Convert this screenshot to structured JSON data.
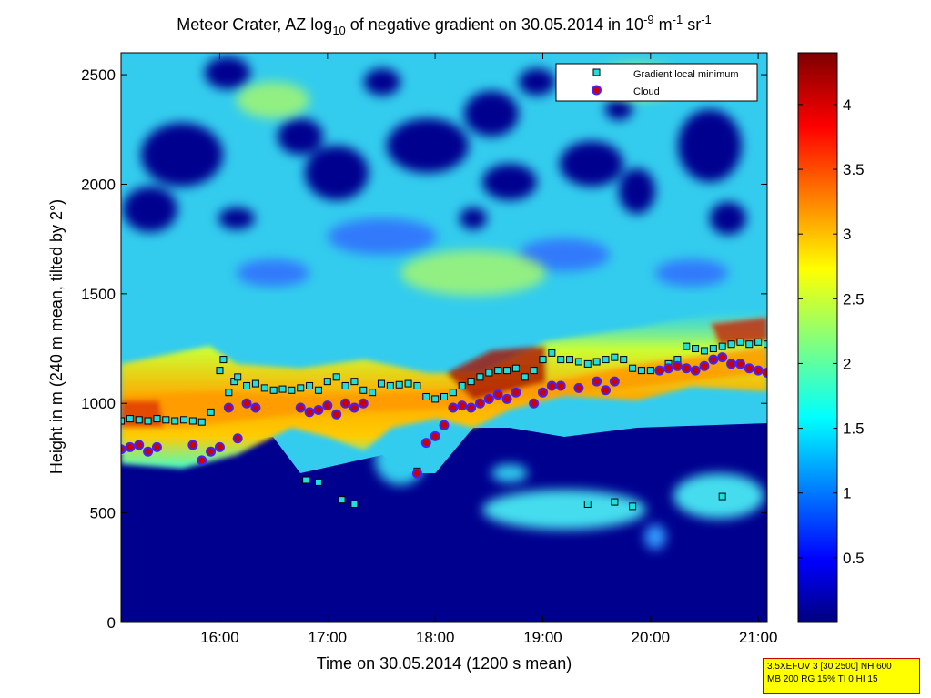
{
  "chart_data": {
    "type": "heatmap",
    "title_parts": [
      "Meteor Crater, AZ log",
      "10",
      " of negative gradient on 30.05.2014 in 10",
      "-9",
      " m",
      "-1",
      " sr",
      "-1"
    ],
    "xlabel": "Time on 30.05.2014 (1200 s mean)",
    "ylabel": "Height in m (240 m mean, tilted by 2°)",
    "xlim": [
      "15:05",
      "21:05"
    ],
    "ylim": [
      0,
      2600
    ],
    "x_ticks": [
      "16:00",
      "17:00",
      "18:00",
      "19:00",
      "20:00",
      "21:00"
    ],
    "y_ticks": [
      0,
      500,
      1000,
      1500,
      2000,
      2500
    ],
    "colorbar": {
      "colormap": "jet",
      "range": [
        0,
        4.4
      ],
      "ticks": [
        0.5,
        1,
        1.5,
        2,
        2.5,
        3,
        3.5,
        4
      ]
    },
    "legend": {
      "position": "top-right",
      "entries": [
        "Gradient local minimum",
        "Cloud"
      ]
    },
    "series": [
      {
        "name": "Gradient local minimum",
        "marker": "square",
        "color": "#22dddd",
        "points": [
          [
            "15:05",
            920
          ],
          [
            "15:10",
            930
          ],
          [
            "15:15",
            925
          ],
          [
            "15:20",
            920
          ],
          [
            "15:25",
            930
          ],
          [
            "15:30",
            925
          ],
          [
            "15:35",
            920
          ],
          [
            "15:40",
            925
          ],
          [
            "15:45",
            920
          ],
          [
            "15:50",
            915
          ],
          [
            "15:55",
            960
          ],
          [
            "16:00",
            1150
          ],
          [
            "16:02",
            1200
          ],
          [
            "16:05",
            1050
          ],
          [
            "16:08",
            1100
          ],
          [
            "16:10",
            1120
          ],
          [
            "16:15",
            1080
          ],
          [
            "16:20",
            1090
          ],
          [
            "16:25",
            1070
          ],
          [
            "16:30",
            1060
          ],
          [
            "16:35",
            1065
          ],
          [
            "16:40",
            1060
          ],
          [
            "16:45",
            1070
          ],
          [
            "16:50",
            1080
          ],
          [
            "16:55",
            1060
          ],
          [
            "17:00",
            1100
          ],
          [
            "17:05",
            1120
          ],
          [
            "17:10",
            1080
          ],
          [
            "17:15",
            1100
          ],
          [
            "17:20",
            1060
          ],
          [
            "17:25",
            1050
          ],
          [
            "17:30",
            1090
          ],
          [
            "17:35",
            1080
          ],
          [
            "17:40",
            1085
          ],
          [
            "17:45",
            1090
          ],
          [
            "17:50",
            1080
          ],
          [
            "17:55",
            1030
          ],
          [
            "18:00",
            1020
          ],
          [
            "18:05",
            1030
          ],
          [
            "18:10",
            1050
          ],
          [
            "18:15",
            1080
          ],
          [
            "18:20",
            1100
          ],
          [
            "18:25",
            1120
          ],
          [
            "18:30",
            1140
          ],
          [
            "18:35",
            1150
          ],
          [
            "18:40",
            1150
          ],
          [
            "18:45",
            1160
          ],
          [
            "18:50",
            1120
          ],
          [
            "18:55",
            1150
          ],
          [
            "19:00",
            1200
          ],
          [
            "19:05",
            1230
          ],
          [
            "19:10",
            1200
          ],
          [
            "19:15",
            1200
          ],
          [
            "19:20",
            1190
          ],
          [
            "19:25",
            1180
          ],
          [
            "19:30",
            1190
          ],
          [
            "19:35",
            1200
          ],
          [
            "19:40",
            1210
          ],
          [
            "19:45",
            1200
          ],
          [
            "19:50",
            1160
          ],
          [
            "19:55",
            1150
          ],
          [
            "20:00",
            1150
          ],
          [
            "20:05",
            1150
          ],
          [
            "20:10",
            1180
          ],
          [
            "20:15",
            1200
          ],
          [
            "20:20",
            1260
          ],
          [
            "20:25",
            1250
          ],
          [
            "20:30",
            1240
          ],
          [
            "20:35",
            1250
          ],
          [
            "20:40",
            1260
          ],
          [
            "20:45",
            1270
          ],
          [
            "20:50",
            1280
          ],
          [
            "20:55",
            1270
          ],
          [
            "21:00",
            1280
          ],
          [
            "21:05",
            1270
          ],
          [
            "16:48",
            650
          ],
          [
            "16:55",
            640
          ],
          [
            "17:08",
            560
          ],
          [
            "17:15",
            540
          ],
          [
            "19:25",
            540
          ],
          [
            "19:40",
            550
          ],
          [
            "19:50",
            530
          ],
          [
            "20:40",
            575
          ],
          [
            "17:50",
            690
          ]
        ]
      },
      {
        "name": "Cloud",
        "marker": "circle",
        "color": "#cc0000",
        "points": [
          [
            "15:05",
            790
          ],
          [
            "15:10",
            800
          ],
          [
            "15:15",
            810
          ],
          [
            "15:20",
            780
          ],
          [
            "15:25",
            800
          ],
          [
            "15:45",
            810
          ],
          [
            "15:50",
            740
          ],
          [
            "15:55",
            780
          ],
          [
            "16:00",
            800
          ],
          [
            "16:05",
            980
          ],
          [
            "16:10",
            840
          ],
          [
            "16:15",
            1000
          ],
          [
            "16:20",
            980
          ],
          [
            "16:45",
            980
          ],
          [
            "16:50",
            960
          ],
          [
            "16:55",
            970
          ],
          [
            "17:00",
            990
          ],
          [
            "17:05",
            950
          ],
          [
            "17:10",
            1000
          ],
          [
            "17:15",
            980
          ],
          [
            "17:20",
            1000
          ],
          [
            "17:50",
            680
          ],
          [
            "17:55",
            820
          ],
          [
            "18:00",
            850
          ],
          [
            "18:05",
            900
          ],
          [
            "18:10",
            980
          ],
          [
            "18:15",
            990
          ],
          [
            "18:20",
            980
          ],
          [
            "18:25",
            1000
          ],
          [
            "18:30",
            1020
          ],
          [
            "18:35",
            1040
          ],
          [
            "18:40",
            1020
          ],
          [
            "18:45",
            1050
          ],
          [
            "18:55",
            1000
          ],
          [
            "19:00",
            1050
          ],
          [
            "19:05",
            1080
          ],
          [
            "19:10",
            1080
          ],
          [
            "19:20",
            1070
          ],
          [
            "19:30",
            1100
          ],
          [
            "19:35",
            1060
          ],
          [
            "19:40",
            1100
          ],
          [
            "20:05",
            1150
          ],
          [
            "20:10",
            1160
          ],
          [
            "20:15",
            1170
          ],
          [
            "20:20",
            1160
          ],
          [
            "20:25",
            1150
          ],
          [
            "20:30",
            1170
          ],
          [
            "20:35",
            1200
          ],
          [
            "20:40",
            1210
          ],
          [
            "20:45",
            1180
          ],
          [
            "20:50",
            1180
          ],
          [
            "20:55",
            1160
          ],
          [
            "21:00",
            1150
          ],
          [
            "21:05",
            1140
          ]
        ]
      }
    ]
  },
  "info_box": {
    "line1": "3.5XEFUV 3 [30 2500] NH 600",
    "line2": "MB 200 RG 15% TI 0 HI 15"
  }
}
